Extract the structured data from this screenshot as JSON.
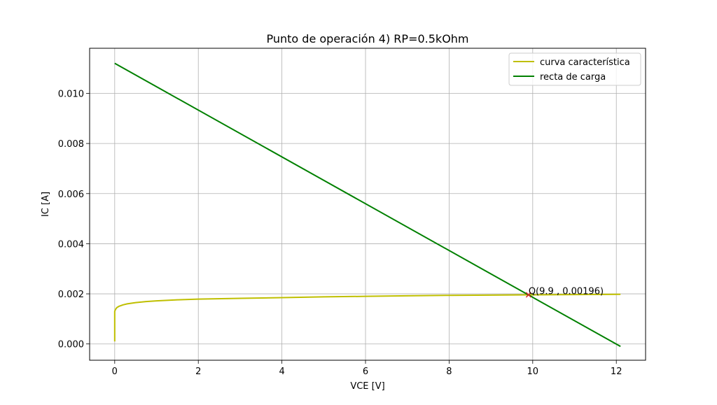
{
  "chart_data": {
    "type": "line",
    "title": "Punto de operación 4) RP=0.5kOhm",
    "xlabel": "VCE [V]",
    "ylabel": "IC [A]",
    "xlim": [
      -0.6,
      12.7
    ],
    "ylim": [
      -0.00065,
      0.0118
    ],
    "grid": true,
    "legend_position": "top-right",
    "x_ticks": [
      0,
      2,
      4,
      6,
      8,
      10,
      12
    ],
    "x_tick_labels": [
      "0",
      "2",
      "4",
      "6",
      "8",
      "10",
      "12"
    ],
    "y_ticks": [
      0.0,
      0.002,
      0.004,
      0.006,
      0.008,
      0.01
    ],
    "y_tick_labels": [
      "0.000",
      "0.002",
      "0.004",
      "0.006",
      "0.008",
      "0.010"
    ],
    "series": [
      {
        "name": "curva característica",
        "color": "#bfbf00",
        "x": [
          0.0,
          0.0,
          0.02,
          0.05,
          0.1,
          0.2,
          0.3,
          0.5,
          0.75,
          1.0,
          1.5,
          2.0,
          3.0,
          4.0,
          5.0,
          6.0,
          7.0,
          8.0,
          9.0,
          9.9,
          11.0,
          12.1
        ],
        "y": [
          0.0001,
          0.0013,
          0.00138,
          0.00145,
          0.0015,
          0.00156,
          0.0016,
          0.00165,
          0.00169,
          0.00172,
          0.00176,
          0.00179,
          0.00182,
          0.00185,
          0.00188,
          0.0019,
          0.00192,
          0.00194,
          0.00195,
          0.00196,
          0.00197,
          0.00198
        ]
      },
      {
        "name": "recta de carga",
        "color": "#008000",
        "x": [
          0.0,
          12.1
        ],
        "y": [
          0.0112,
          -0.0001
        ]
      }
    ],
    "points": [
      {
        "x": 9.9,
        "y": 0.00196,
        "marker": "x",
        "color": "#d62728"
      }
    ],
    "annotations": [
      {
        "text": "Q(9.9 , 0.00196)",
        "x": 9.9,
        "y": 0.00196
      }
    ]
  }
}
